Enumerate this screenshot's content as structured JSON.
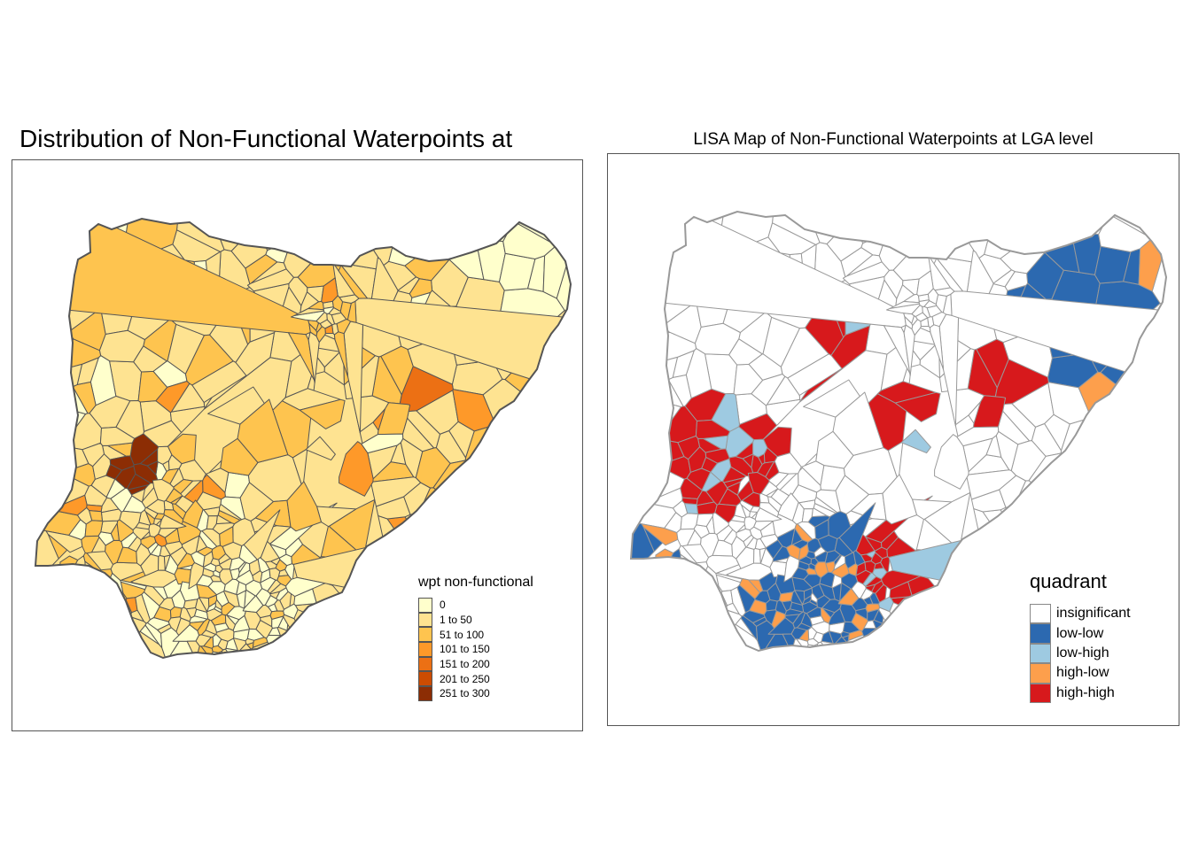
{
  "left_map": {
    "title": "Distribution of Non-Functional Waterpoints at",
    "legend": {
      "title": "wpt non-functional",
      "classes": [
        {
          "label": "0",
          "color": "#FFFFCC"
        },
        {
          "label": "1 to 50",
          "color": "#FEE391"
        },
        {
          "label": "51 to 100",
          "color": "#FEC44F"
        },
        {
          "label": "101 to 150",
          "color": "#FE9929"
        },
        {
          "label": "151 to 200",
          "color": "#EC7014"
        },
        {
          "label": "201 to 250",
          "color": "#CC4C02"
        },
        {
          "label": "251 to 300",
          "color": "#8C2D04"
        }
      ]
    },
    "border_color": "#555555"
  },
  "right_map": {
    "title": "LISA Map of Non-Functional Waterpoints at LGA level",
    "legend": {
      "title": "quadrant",
      "classes": [
        {
          "label": "insignificant",
          "color": "#FFFFFF"
        },
        {
          "label": "low-low",
          "color": "#2C69B0"
        },
        {
          "label": "low-high",
          "color": "#9ECAE1"
        },
        {
          "label": "high-low",
          "color": "#FD9F4C"
        },
        {
          "label": "high-high",
          "color": "#D7191C"
        }
      ]
    },
    "border_color": "#999999"
  }
}
